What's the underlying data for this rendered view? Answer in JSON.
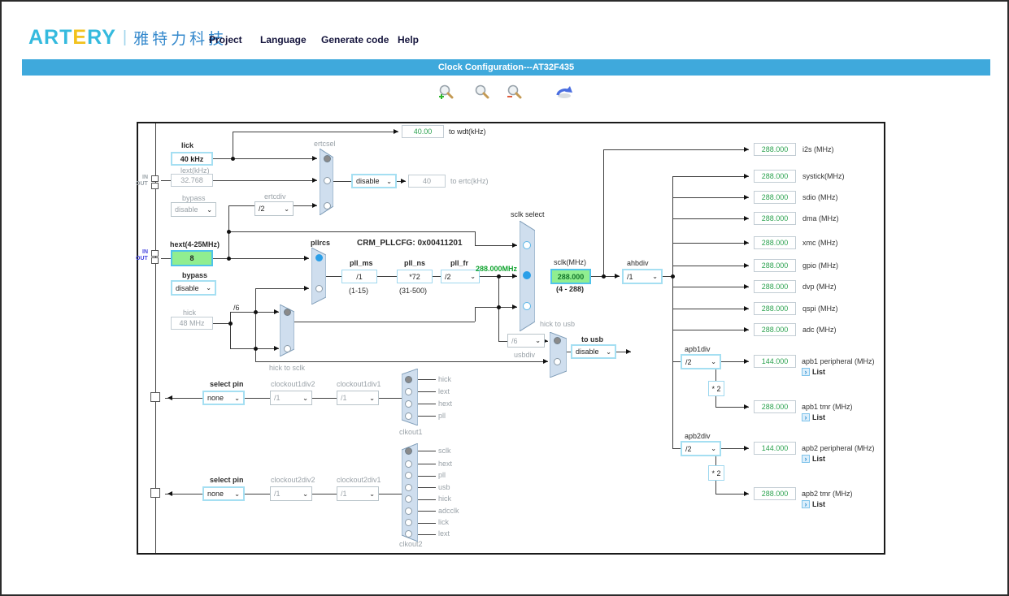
{
  "header": {
    "logo": {
      "brand_a": "ART",
      "brand_e": "E",
      "brand_b": "RY",
      "divider": "|",
      "cn": "雅特力科技"
    },
    "menu": [
      "Project",
      "Language",
      "Generate code",
      "Help"
    ],
    "titlebar": "Clock Configuration---AT32F435",
    "toolbar_icons": [
      "zoom-in-icon",
      "zoom-icon",
      "zoom-out-icon",
      "undo-icon"
    ]
  },
  "colors": {
    "titlebar": "#3FA9DC",
    "green_box": "#90EE90",
    "green_text": "#0FA32E",
    "accent_blue": "#A5DFF2",
    "mux_fill": "#CFDEEE"
  },
  "diagram": {
    "io": {
      "in": "IN",
      "out": "OUT"
    },
    "lick": {
      "label": "lick",
      "value": "40 kHz"
    },
    "wdt": {
      "value": "40.00",
      "label": "to wdt(kHz)"
    },
    "lext": {
      "label": "lext(kHz)",
      "value": "32.768",
      "bypass_label": "bypass",
      "bypass": "disable"
    },
    "ertcdiv": {
      "label": "ertcdiv",
      "value": "/2"
    },
    "ertcsel": {
      "label": "ertcsel",
      "enable": "disable"
    },
    "ertc": {
      "value": "40",
      "label": "to ertc(kHz)"
    },
    "hext": {
      "label": "hext(4-25MHz)",
      "value": "8",
      "bypass_label": "bypass",
      "bypass": "disable"
    },
    "hick": {
      "label": "hick",
      "value": "48 MHz",
      "div6": "/6"
    },
    "pll": {
      "mux_label": "pllrcs",
      "cfg": "CRM_PLLCFG:   0x00411201",
      "ms_label": "pll_ms",
      "ms": "/1",
      "ms_range": "(1-15)",
      "ns_label": "pll_ns",
      "ns": "*72",
      "ns_range": "(31-500)",
      "fr_label": "pll_fr",
      "fr": "/2",
      "out": "288.000MHz"
    },
    "sclk_select_label": "sclk select",
    "sclk": {
      "label": "sclk(MHz)",
      "value": "288.000",
      "range": "(4 - 288)"
    },
    "ahbdiv": {
      "label": "ahbdiv",
      "value": "/1"
    },
    "hick_to_sclk_label": "hick to sclk",
    "usbdiv": {
      "label": "usbdiv",
      "value": "/6"
    },
    "hick_to_usb_label": "hick to usb",
    "to_usb": {
      "label": "to usb",
      "value": "disable"
    },
    "outputs": [
      {
        "name": "i2s (MHz)",
        "value": "288.000"
      },
      {
        "name": "systick(MHz)",
        "value": "288.000"
      },
      {
        "name": "sdio (MHz)",
        "value": "288.000"
      },
      {
        "name": "dma (MHz)",
        "value": "288.000"
      },
      {
        "name": "xmc (MHz)",
        "value": "288.000"
      },
      {
        "name": "gpio (MHz)",
        "value": "288.000"
      },
      {
        "name": "dvp (MHz)",
        "value": "288.000"
      },
      {
        "name": "qspi (MHz)",
        "value": "288.000"
      },
      {
        "name": "adc (MHz)",
        "value": "288.000"
      }
    ],
    "apb1": {
      "div_label": "apb1div",
      "div": "/2",
      "mul": "* 2",
      "periph_value": "144.000",
      "periph_label": "apb1 peripheral (MHz)",
      "tmr_value": "288.000",
      "tmr_label": "apb1 tmr (MHz)",
      "list": "List"
    },
    "apb2": {
      "div_label": "apb2div",
      "div": "/2",
      "mul": "* 2",
      "periph_value": "144.000",
      "periph_label": "apb2 peripheral (MHz)",
      "tmr_value": "288.000",
      "tmr_label": "apb2 tmr (MHz)",
      "list": "List"
    },
    "clkout1": {
      "select_label": "select pin",
      "select": "none",
      "div2_label": "clockout1div2",
      "div2": "/1",
      "div1_label": "clockout1div1",
      "div1": "/1",
      "label": "clkout1",
      "sources": [
        "hick",
        "lext",
        "hext",
        "pll"
      ]
    },
    "clkout2": {
      "select_label": "select pin",
      "select": "none",
      "div2_label": "clockout2div2",
      "div2": "/1",
      "div1_label": "clockout2div1",
      "div1": "/1",
      "label": "clkout2",
      "sources": [
        "sclk",
        "hext",
        "pll",
        "usb",
        "hick",
        "adcclk",
        "lick",
        "lext"
      ]
    }
  }
}
